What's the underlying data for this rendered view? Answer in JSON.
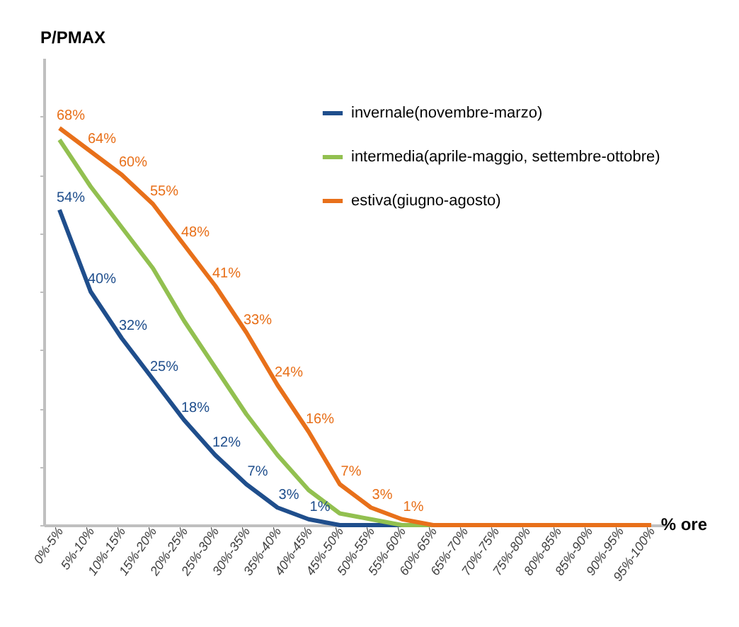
{
  "chart_data": {
    "type": "line",
    "ylabel": "P/PMAX",
    "xlabel": "% ore",
    "categories": [
      "0%-5%",
      "5%-10%",
      "10%-15%",
      "15%-20%",
      "20%-25%",
      "25%-30%",
      "30%-35%",
      "35%-40%",
      "40%-45%",
      "45%-50%",
      "50%-55%",
      "55%-60%",
      "60%-65%",
      "65%-70%",
      "70%-75%",
      "75%-80%",
      "80%-85%",
      "85%-90%",
      "90%-95%",
      "95%-100%"
    ],
    "series": [
      {
        "name": "invernale(novembre-marzo)",
        "color": "#1f4e8c",
        "values": [
          54,
          40,
          32,
          25,
          18,
          12,
          7,
          3,
          1,
          0,
          0,
          0,
          0,
          null,
          null,
          null,
          null,
          null,
          null,
          null
        ],
        "value_labels": [
          "54%",
          "40%",
          "32%",
          "25%",
          "18%",
          "12%",
          "7%",
          "3%",
          "1%",
          null,
          null,
          null,
          null,
          null,
          null,
          null,
          null,
          null,
          null,
          null
        ]
      },
      {
        "name": "intermedia(aprile-maggio, settembre-ottobre)",
        "color": "#92c050",
        "values": [
          66,
          58,
          51,
          44,
          35,
          27,
          19,
          12,
          6,
          2,
          1,
          0,
          0,
          0,
          null,
          null,
          null,
          null,
          null,
          null
        ]
      },
      {
        "name": "estiva(giugno-agosto)",
        "color": "#e8701a",
        "values": [
          68,
          64,
          60,
          55,
          48,
          41,
          33,
          24,
          16,
          7,
          3,
          1,
          0,
          0,
          0,
          0,
          0,
          0,
          0,
          0
        ],
        "value_labels": [
          "68%",
          "64%",
          "60%",
          "55%",
          "48%",
          "41%",
          "33%",
          "24%",
          "16%",
          "7%",
          "3%",
          "1%",
          null,
          null,
          null,
          null,
          null,
          null,
          null,
          null
        ]
      }
    ],
    "ylim": [
      0,
      80
    ],
    "yticks": [
      {
        "value": 0,
        "label": null
      },
      {
        "value": 10,
        "label": null
      },
      {
        "value": 20,
        "label": null
      },
      {
        "value": 30,
        "label": null
      },
      {
        "value": 40,
        "label": null
      },
      {
        "value": 50,
        "label": null
      },
      {
        "value": 60,
        "label": null
      },
      {
        "value": 70,
        "label": null
      }
    ],
    "tick_labels": "x",
    "grid": false,
    "legend": "top right",
    "marker": "none",
    "line_style": "solid"
  }
}
